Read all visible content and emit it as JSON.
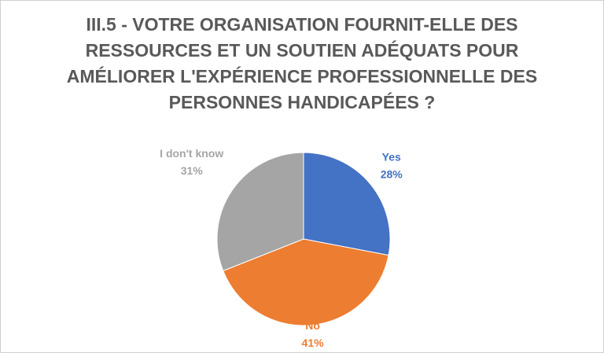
{
  "chart_data": {
    "type": "pie",
    "title": "III.5 - VOTRE ORGANISATION FOURNIT-ELLE DES RESSOURCES ET UN SOUTIEN ADÉQUATS POUR AMÉLIORER L'EXPÉRIENCE PROFESSIONNELLE DES PERSONNES HANDICAPÉES ?",
    "categories": [
      "Yes",
      "No",
      "I don't know"
    ],
    "values": [
      28,
      41,
      31
    ],
    "value_labels": [
      "28%",
      "41%",
      "31%"
    ],
    "colors": [
      "#4472c4",
      "#ed7d31",
      "#a5a5a5"
    ]
  }
}
